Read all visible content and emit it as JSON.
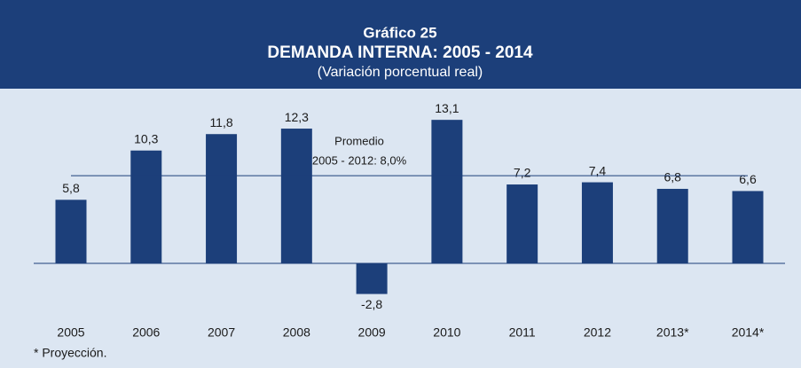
{
  "chart_data": {
    "type": "bar",
    "header": {
      "label": "Gráfico 25",
      "title": "DEMANDA INTERNA: 2005 - 2014",
      "subtitle": "(Variación porcentual real)"
    },
    "categories": [
      "2005",
      "2006",
      "2007",
      "2008",
      "2009",
      "2010",
      "2011",
      "2012",
      "2013*",
      "2014*"
    ],
    "values": [
      5.8,
      10.3,
      11.8,
      12.3,
      -2.8,
      13.1,
      7.2,
      7.4,
      6.8,
      6.6
    ],
    "value_labels": [
      "5,8",
      "10,3",
      "11,8",
      "12,3",
      "-2,8",
      "13,1",
      "7,2",
      "7,4",
      "6,8",
      "6,6"
    ],
    "color": "#1c3f7a",
    "ylim": [
      -4.7,
      15.3
    ],
    "average": {
      "value": 8.0,
      "label_lines": [
        "Promedio",
        "2005 - 2012: 8,0%"
      ]
    },
    "footnote": "* Proyección."
  }
}
